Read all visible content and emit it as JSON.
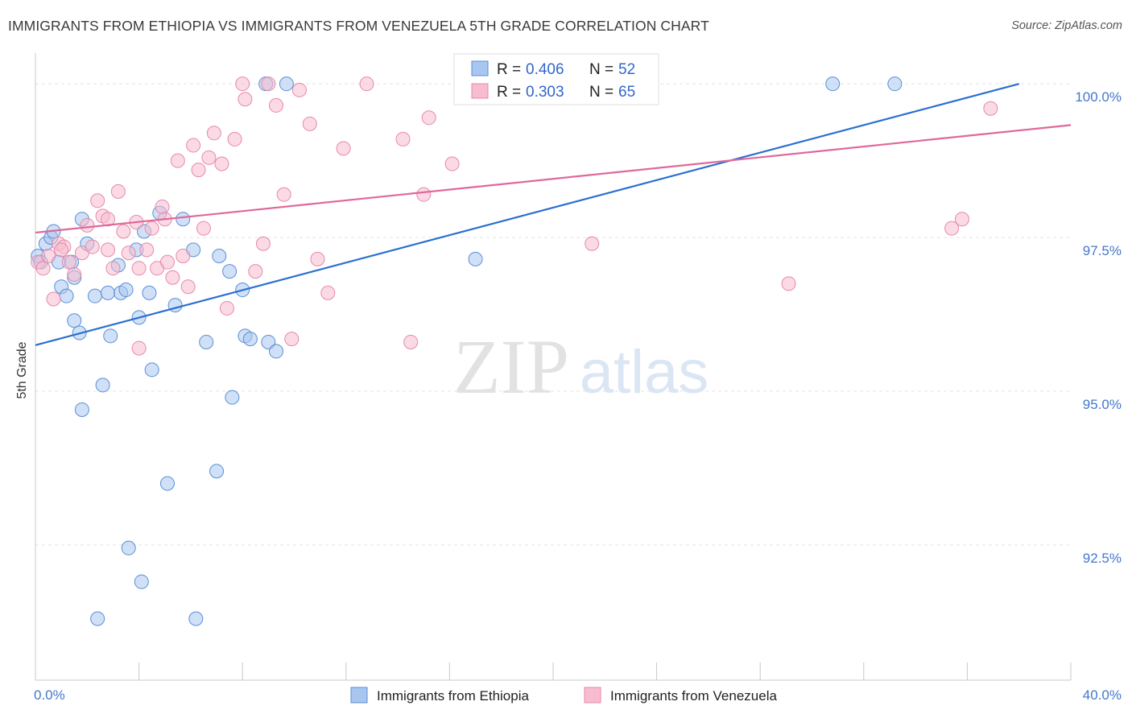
{
  "title": "IMMIGRANTS FROM ETHIOPIA VS IMMIGRANTS FROM VENEZUELA 5TH GRADE CORRELATION CHART",
  "source": "Source: ZipAtlas.com",
  "watermark": {
    "zip": "ZIP",
    "atlas": "atlas"
  },
  "colors": {
    "ethiopia_fill": "#a9c6f0",
    "ethiopia_stroke": "#5a8fd6",
    "ethiopia_line": "#2a6fd0",
    "venezuela_fill": "#f7bcd0",
    "venezuela_stroke": "#e58aa8",
    "venezuela_line": "#e0689a",
    "tick_label": "#4477cc",
    "grid": "#e3e3e3"
  },
  "stats_legend": [
    {
      "r_label": "R =",
      "r_value": "0.406",
      "n_label": "N =",
      "n_value": "52"
    },
    {
      "r_label": "R =",
      "r_value": "0.303",
      "n_label": "N =",
      "n_value": "65"
    }
  ],
  "chart_data": {
    "type": "scatter",
    "title": "IMMIGRANTS FROM ETHIOPIA VS IMMIGRANTS FROM VENEZUELA 5TH GRADE CORRELATION CHART",
    "xlabel": "",
    "ylabel": "5th Grade",
    "xlim": [
      0,
      40
    ],
    "ylim": [
      90.3,
      100.5
    ],
    "y_ticks": [
      92.5,
      95.0,
      97.5,
      100.0
    ],
    "y_tick_labels": [
      "92.5%",
      "95.0%",
      "97.5%",
      "100.0%"
    ],
    "x_tick_labels": [
      "0.0%",
      "40.0%"
    ],
    "grid": true,
    "legend_position": "top-center",
    "series": [
      {
        "name": "Immigrants from Ethiopia",
        "trend": [
          [
            0,
            95.75
          ],
          [
            38.0,
            100.0
          ]
        ],
        "points": [
          [
            0.1,
            97.2
          ],
          [
            0.2,
            97.1
          ],
          [
            0.4,
            97.4
          ],
          [
            0.6,
            97.5
          ],
          [
            0.7,
            97.6
          ],
          [
            0.9,
            97.1
          ],
          [
            1.0,
            96.7
          ],
          [
            1.2,
            96.55
          ],
          [
            1.4,
            97.1
          ],
          [
            1.5,
            96.85
          ],
          [
            1.5,
            96.15
          ],
          [
            1.7,
            95.95
          ],
          [
            1.8,
            94.7
          ],
          [
            1.8,
            97.8
          ],
          [
            2.0,
            97.4
          ],
          [
            2.3,
            96.55
          ],
          [
            2.4,
            91.3
          ],
          [
            2.6,
            95.1
          ],
          [
            2.8,
            96.6
          ],
          [
            2.9,
            95.9
          ],
          [
            3.2,
            97.05
          ],
          [
            3.3,
            96.6
          ],
          [
            3.5,
            96.65
          ],
          [
            3.6,
            92.45
          ],
          [
            3.9,
            97.3
          ],
          [
            4.0,
            96.2
          ],
          [
            4.2,
            97.6
          ],
          [
            4.5,
            95.35
          ],
          [
            4.8,
            97.9
          ],
          [
            5.1,
            93.5
          ],
          [
            5.4,
            96.4
          ],
          [
            5.7,
            97.8
          ],
          [
            6.1,
            97.3
          ],
          [
            6.2,
            91.3
          ],
          [
            6.6,
            95.8
          ],
          [
            7.0,
            93.7
          ],
          [
            7.1,
            97.2
          ],
          [
            7.5,
            96.95
          ],
          [
            7.6,
            94.9
          ],
          [
            8.0,
            96.65
          ],
          [
            8.1,
            95.9
          ],
          [
            8.3,
            95.85
          ],
          [
            8.9,
            100.0
          ],
          [
            9.0,
            95.8
          ],
          [
            9.3,
            95.65
          ],
          [
            9.7,
            100.0
          ],
          [
            17.0,
            97.15
          ],
          [
            23.8,
            100.0
          ],
          [
            30.8,
            100.0
          ],
          [
            33.2,
            100.0
          ],
          [
            4.1,
            91.9
          ],
          [
            4.4,
            96.6
          ]
        ]
      },
      {
        "name": "Immigrants from Venezuela",
        "trend": [
          [
            0,
            97.58
          ],
          [
            40,
            99.33
          ]
        ],
        "points": [
          [
            0.1,
            97.1
          ],
          [
            0.3,
            97.0
          ],
          [
            0.5,
            97.2
          ],
          [
            0.7,
            96.5
          ],
          [
            0.9,
            97.4
          ],
          [
            1.1,
            97.35
          ],
          [
            1.3,
            97.1
          ],
          [
            1.5,
            96.9
          ],
          [
            1.8,
            97.25
          ],
          [
            2.0,
            97.7
          ],
          [
            2.2,
            97.35
          ],
          [
            2.4,
            98.1
          ],
          [
            2.6,
            97.85
          ],
          [
            2.8,
            97.3
          ],
          [
            3.0,
            97.0
          ],
          [
            3.2,
            98.25
          ],
          [
            3.4,
            97.6
          ],
          [
            3.6,
            97.25
          ],
          [
            3.9,
            97.75
          ],
          [
            4.0,
            95.7
          ],
          [
            4.3,
            97.3
          ],
          [
            4.5,
            97.65
          ],
          [
            4.7,
            97.0
          ],
          [
            4.9,
            98.0
          ],
          [
            5.1,
            97.1
          ],
          [
            5.3,
            96.85
          ],
          [
            5.5,
            98.75
          ],
          [
            5.7,
            97.2
          ],
          [
            5.9,
            96.7
          ],
          [
            6.1,
            99.0
          ],
          [
            6.3,
            98.6
          ],
          [
            6.5,
            97.65
          ],
          [
            6.7,
            98.8
          ],
          [
            6.9,
            99.2
          ],
          [
            7.2,
            98.7
          ],
          [
            7.4,
            96.35
          ],
          [
            7.7,
            99.1
          ],
          [
            8.0,
            100.0
          ],
          [
            8.1,
            99.75
          ],
          [
            8.5,
            96.95
          ],
          [
            8.8,
            97.4
          ],
          [
            9.0,
            100.0
          ],
          [
            9.3,
            99.65
          ],
          [
            9.6,
            98.2
          ],
          [
            9.9,
            95.85
          ],
          [
            10.2,
            99.9
          ],
          [
            10.6,
            99.35
          ],
          [
            10.9,
            97.15
          ],
          [
            11.3,
            96.6
          ],
          [
            11.9,
            98.95
          ],
          [
            12.8,
            100.0
          ],
          [
            14.2,
            99.1
          ],
          [
            14.5,
            95.8
          ],
          [
            15.0,
            98.2
          ],
          [
            15.2,
            99.45
          ],
          [
            16.1,
            98.7
          ],
          [
            21.5,
            97.4
          ],
          [
            29.1,
            96.75
          ],
          [
            35.4,
            97.65
          ],
          [
            35.8,
            97.8
          ],
          [
            36.9,
            99.6
          ],
          [
            1.0,
            97.3
          ],
          [
            4.0,
            97.0
          ],
          [
            2.8,
            97.8
          ],
          [
            5.0,
            97.8
          ]
        ]
      }
    ]
  },
  "bottom_legend": [
    {
      "label": "Immigrants from Ethiopia"
    },
    {
      "label": "Immigrants from Venezuela"
    }
  ]
}
